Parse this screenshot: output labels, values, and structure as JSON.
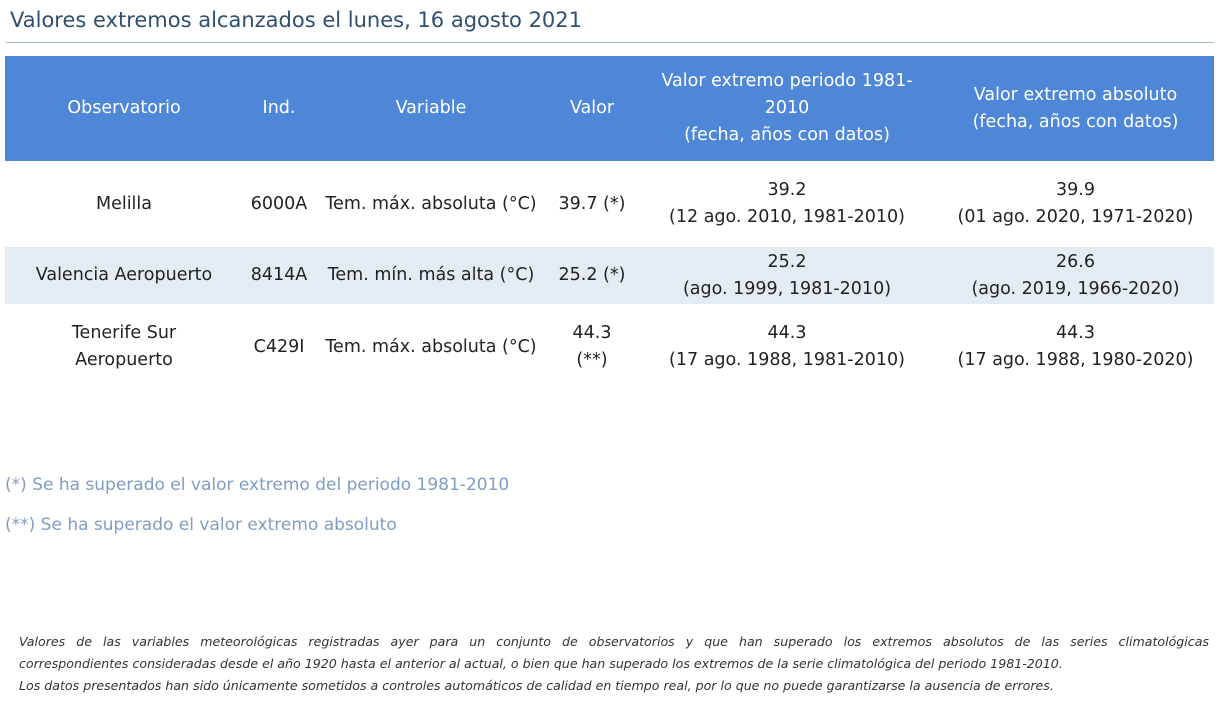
{
  "title": "Valores extremos alcanzados el lunes, 16 agosto 2021",
  "table": {
    "headers": {
      "observatory": "Observatorio",
      "index": "Ind.",
      "variable": "Variable",
      "value": "Valor",
      "period_line1": "Valor extremo periodo 1981-2010",
      "period_line2": "(fecha, años con datos)",
      "absolute_line1": "Valor extremo absoluto",
      "absolute_line2": "(fecha, años con datos)"
    },
    "rows": [
      {
        "observatory": "Melilla",
        "index": "6000A",
        "variable": "Tem. máx. absoluta (°C)",
        "value": "39.7 (*)",
        "period_value": "39.2",
        "period_detail": "(12 ago. 2010, 1981-2010)",
        "absolute_value": "39.9",
        "absolute_detail": "(01 ago. 2020, 1971-2020)"
      },
      {
        "observatory": "Valencia Aeropuerto",
        "index": "8414A",
        "variable": "Tem. mín. más alta (°C)",
        "value": "25.2 (*)",
        "period_value": "25.2",
        "period_detail": "(ago. 1999, 1981-2010)",
        "absolute_value": "26.6",
        "absolute_detail": "(ago. 2019, 1966-2020)"
      },
      {
        "observatory": "Tenerife Sur Aeropuerto",
        "index": "C429I",
        "variable": "Tem. máx. absoluta (°C)",
        "value": "44.3 (**)",
        "period_value": "44.3",
        "period_detail": "(17 ago. 1988, 1981-2010)",
        "absolute_value": "44.3",
        "absolute_detail": "(17 ago. 1988, 1980-2020)"
      }
    ]
  },
  "notes": {
    "single_asterisk": "(*) Se ha superado el valor extremo del periodo 1981-2010",
    "double_asterisk": "(**) Se ha superado el valor extremo absoluto"
  },
  "disclaimer": {
    "line1": "Valores de las variables meteorológicas registradas ayer para un conjunto de observatorios y que han superado los extremos absolutos de las series climatológicas",
    "line2": "correspondientes consideradas desde el año 1920 hasta el anterior al actual, o bien que han superado los extremos de la serie climatológica del periodo 1981-2010.",
    "line3": "Los datos presentados han sido únicamente sometidos a controles automáticos de calidad en tiempo real, por lo que no puede garantizarse la ausencia de errores."
  },
  "colors": {
    "header_background": "#4f87d8",
    "striped_row": "#e3ebf3",
    "title_text": "#2f4f6f",
    "note_text": "#7f9cc2"
  }
}
